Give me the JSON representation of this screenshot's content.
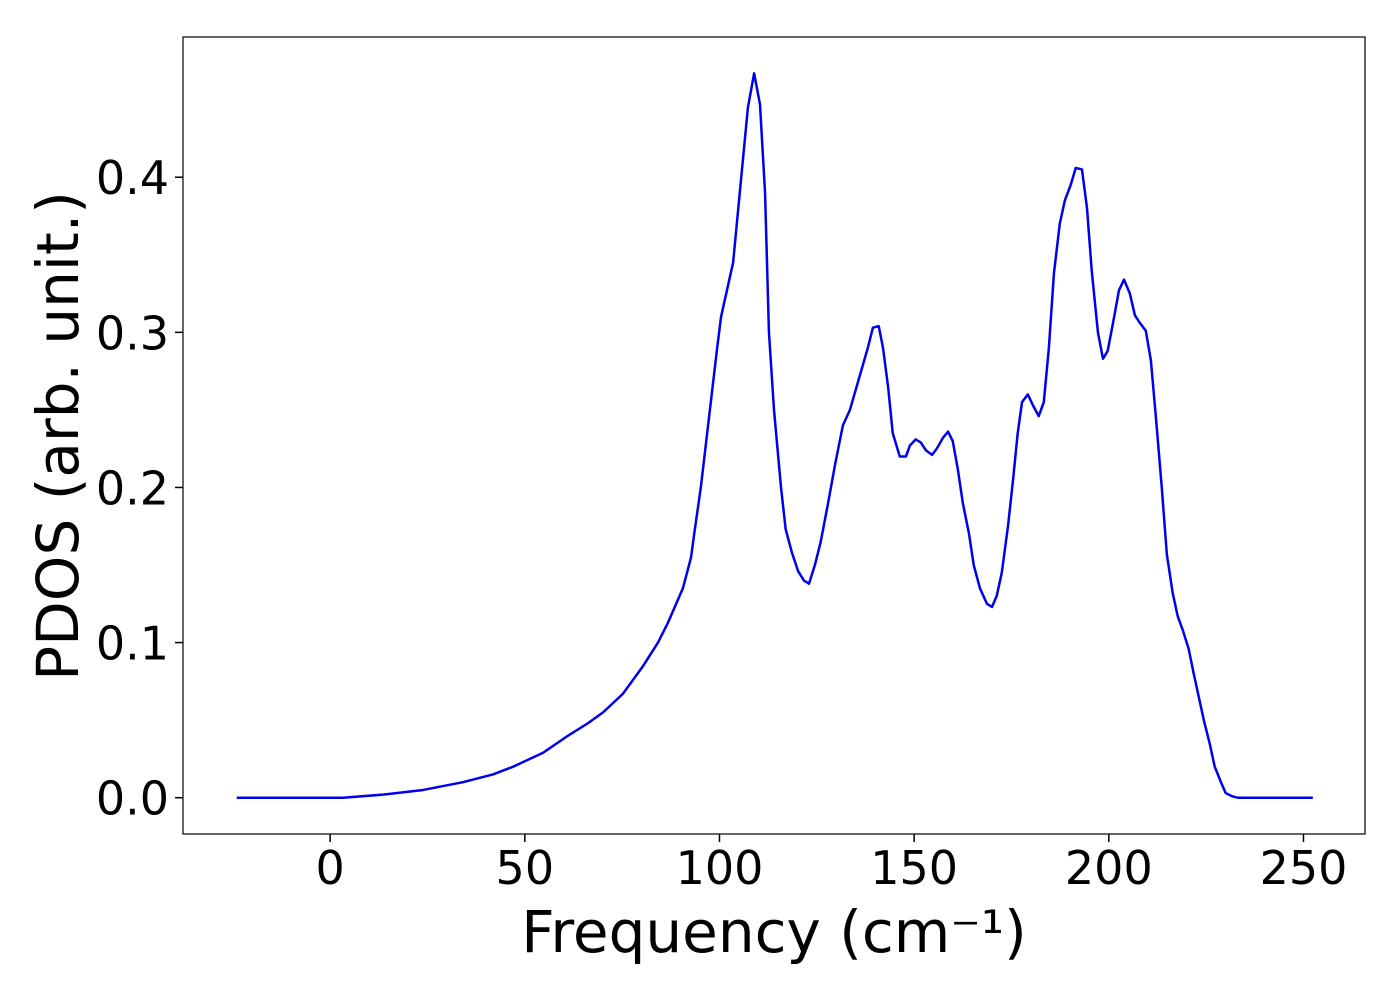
{
  "chart_data": {
    "type": "line",
    "xlabel": "Frequency (cm⁻¹)",
    "ylabel": "PDOS (arb. unit.)",
    "color": "#0000ee",
    "xlim": [
      -37.8,
      265.8
    ],
    "ylim": [
      -0.0234,
      0.4904
    ],
    "xticks": [
      0,
      50,
      100,
      150,
      200,
      250
    ],
    "yticks": [
      {
        "value": 0,
        "label": "0.0"
      },
      0.1,
      0.2,
      0.3,
      0.4
    ],
    "x": [
      -24,
      3.3,
      13.6,
      23.9,
      34.1,
      41.8,
      47,
      54.7,
      61.1,
      66.2,
      70.1,
      75.2,
      80.4,
      84.2,
      86.8,
      90.6,
      92.7,
      93.5,
      95.2,
      99.4,
      100.4,
      103.5,
      107.3,
      108.9,
      110.4,
      111.7,
      112.7,
      114,
      115.8,
      117,
      118.6,
      120.2,
      121.7,
      123,
      124.5,
      126,
      127.9,
      129.7,
      131.7,
      133.5,
      135.8,
      138.1,
      139.4,
      140.9,
      142,
      143.3,
      144.5,
      146.3,
      147.9,
      148.9,
      150.4,
      151.7,
      153,
      154.6,
      155.8,
      157.4,
      158.7,
      159.9,
      161.2,
      162.5,
      164.1,
      165.3,
      166.9,
      168.7,
      170,
      171.2,
      172.5,
      174.1,
      175.4,
      176.6,
      177.7,
      179.2,
      180.5,
      182,
      183.3,
      184.6,
      185.9,
      187.4,
      188.7,
      190.2,
      191.5,
      193.1,
      194.4,
      195.6,
      197.2,
      198.5,
      199.7,
      201,
      202.6,
      203.9,
      205.4,
      206.7,
      208,
      209.5,
      210.8,
      212.1,
      213.6,
      214.9,
      216.4,
      217.7,
      219,
      220.5,
      221.8,
      223.1,
      224.4,
      225.9,
      227.2,
      228.8,
      230,
      231.6,
      233.1,
      252.4
    ],
    "series": [
      {
        "name": "PDOS",
        "color": "#0000ee",
        "values": [
          0,
          0,
          0.002,
          0.005,
          0.01,
          0.015,
          0.02,
          0.029,
          0.04,
          0.048,
          0.055,
          0.067,
          0.085,
          0.1,
          0.113,
          0.135,
          0.155,
          0.17,
          0.2,
          0.29,
          0.31,
          0.345,
          0.445,
          0.467,
          0.447,
          0.39,
          0.3,
          0.25,
          0.2,
          0.173,
          0.158,
          0.146,
          0.14,
          0.138,
          0.15,
          0.165,
          0.19,
          0.215,
          0.24,
          0.25,
          0.27,
          0.29,
          0.303,
          0.304,
          0.29,
          0.265,
          0.235,
          0.22,
          0.22,
          0.227,
          0.231,
          0.229,
          0.224,
          0.221,
          0.225,
          0.232,
          0.236,
          0.23,
          0.212,
          0.19,
          0.17,
          0.15,
          0.135,
          0.125,
          0.123,
          0.13,
          0.145,
          0.175,
          0.205,
          0.235,
          0.255,
          0.26,
          0.253,
          0.246,
          0.255,
          0.29,
          0.338,
          0.37,
          0.385,
          0.395,
          0.406,
          0.405,
          0.38,
          0.34,
          0.3,
          0.283,
          0.288,
          0.305,
          0.327,
          0.334,
          0.325,
          0.311,
          0.306,
          0.301,
          0.282,
          0.245,
          0.2,
          0.157,
          0.132,
          0.117,
          0.108,
          0.096,
          0.08,
          0.065,
          0.05,
          0.035,
          0.02,
          0.01,
          0.003,
          0.001,
          0,
          0
        ]
      }
    ]
  }
}
